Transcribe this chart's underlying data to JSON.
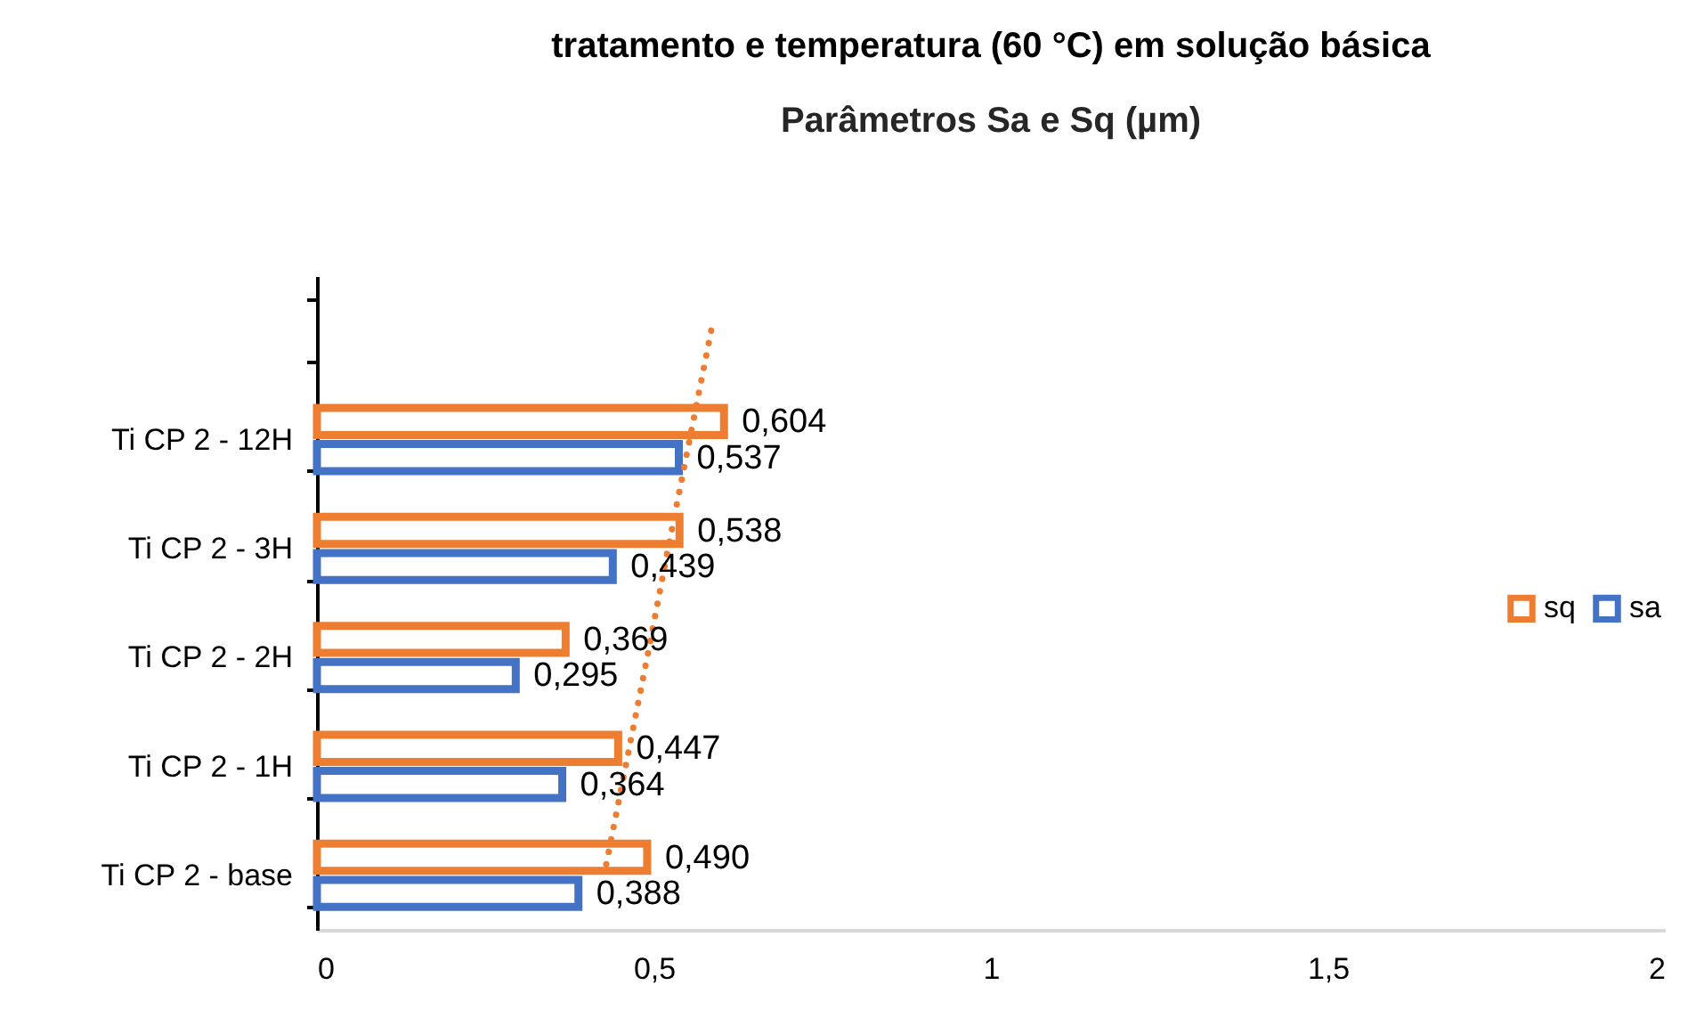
{
  "chart_data": {
    "type": "bar",
    "orientation": "horizontal",
    "title": "tratamento e temperatura (60 °C) em solução básica",
    "subtitle": "Parâmetros Sa e Sq (µm)",
    "categories": [
      null,
      "Ti CP 2 - 12H",
      "Ti CP 2 - 3H",
      "Ti CP 2 - 2H",
      "Ti CP 2 - 1H",
      "Ti CP 2 - base"
    ],
    "series": [
      {
        "name": "sq",
        "color": "#ed7d31",
        "values": [
          null,
          0.604,
          0.538,
          0.369,
          0.447,
          0.49
        ],
        "value_labels": [
          null,
          "0,604",
          "0,538",
          "0,369",
          "0,447",
          "0,490"
        ]
      },
      {
        "name": "sa",
        "color": "#4472c4",
        "values": [
          null,
          0.537,
          0.439,
          0.295,
          0.364,
          0.388
        ],
        "value_labels": [
          null,
          "0,537",
          "0,439",
          "0,295",
          "0,364",
          "0,388"
        ]
      },
      {
        "type": "line",
        "color": "#ed7d31",
        "line_style": "dotted",
        "values": [
          0.585,
          0.553,
          0.521,
          0.49,
          0.458,
          0.426
        ]
      }
    ],
    "xlim": [
      0,
      2
    ],
    "xticks": [
      0,
      {
        "value": 0.5,
        "label": "0,5"
      },
      1,
      {
        "value": 1.5,
        "label": "1,5"
      },
      2
    ],
    "grid": false,
    "legend": "right"
  }
}
